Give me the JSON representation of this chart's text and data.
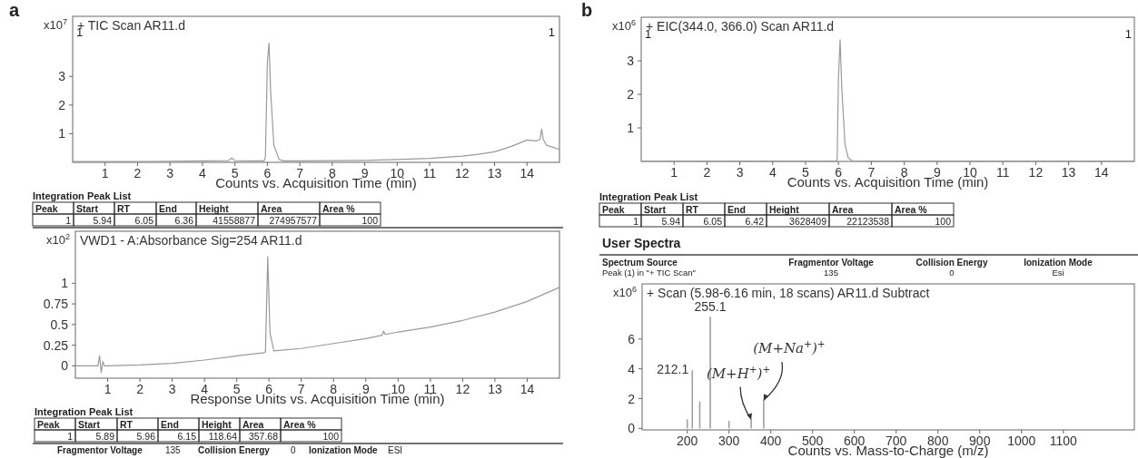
{
  "chart_data": [
    {
      "type": "line",
      "title": "+ TIC Scan AR11.d",
      "xlabel": "Counts vs. Acquisition Time (min)",
      "ylabel": "x10$^{7}$",
      "annotations": [
        "a",
        "1",
        "1"
      ],
      "xlim": [
        0,
        15
      ],
      "ylim": [
        0,
        5.1
      ],
      "xticks": [
        1,
        2,
        3,
        4,
        5,
        6,
        7,
        8,
        9,
        10,
        11,
        12,
        13,
        14
      ],
      "yticks": [
        1,
        2,
        3
      ],
      "series": [
        {
          "color": "#9a9a9a",
          "x": [
            0,
            1,
            2,
            3,
            4,
            4.8,
            4.9,
            5.0,
            5.5,
            5.9,
            5.94,
            6.0,
            6.05,
            6.1,
            6.2,
            6.36,
            6.5,
            7,
            8,
            9,
            10,
            11,
            12,
            12.5,
            13,
            13.5,
            14,
            14.3,
            14.4,
            14.45,
            14.5,
            14.6,
            15
          ],
          "values": [
            0.03,
            0.03,
            0.03,
            0.04,
            0.05,
            0.06,
            0.15,
            0.06,
            0.05,
            0.05,
            0.2,
            3.5,
            4.16,
            2.5,
            0.6,
            0.1,
            0.05,
            0.05,
            0.06,
            0.07,
            0.1,
            0.14,
            0.22,
            0.28,
            0.37,
            0.55,
            0.78,
            0.75,
            0.8,
            1.16,
            0.8,
            0.6,
            0.45
          ]
        }
      ]
    },
    {
      "type": "other",
      "title": "Integration Peak List",
      "categories": [
        "Peak",
        "Start",
        "RT",
        "End",
        "Height",
        "Area",
        "Area %"
      ],
      "annotations": [
        "1",
        "5.94",
        "6.05",
        "6.36",
        "41558877",
        "274957577",
        "100"
      ]
    },
    {
      "type": "line",
      "title": "VWD1 - A:Absorbance Sig=254 AR11.d",
      "xlabel": "Response Units vs. Acquisition Time (min)",
      "ylabel": "x10$^{2}$",
      "xlim": [
        0,
        15
      ],
      "ylim": [
        -0.15,
        1.63
      ],
      "xticks": [
        1,
        2,
        3,
        4,
        5,
        6,
        7,
        8,
        9,
        10,
        11,
        12,
        13,
        14
      ],
      "yticks": [
        0,
        0.25,
        0.5,
        0.75,
        1
      ],
      "series": [
        {
          "color": "#9a9a9a",
          "x": [
            0,
            0.5,
            0.7,
            0.75,
            0.8,
            0.85,
            0.9,
            1,
            2,
            3,
            4,
            5,
            5.85,
            5.89,
            5.96,
            6.03,
            6.15,
            7,
            8,
            9,
            9.5,
            9.55,
            9.6,
            10,
            11,
            12,
            13,
            14,
            15
          ],
          "values": [
            0,
            0,
            0,
            0.12,
            -0.08,
            0.05,
            0,
            0,
            0.01,
            0.03,
            0.07,
            0.12,
            0.16,
            0.17,
            1.32,
            0.4,
            0.18,
            0.21,
            0.27,
            0.33,
            0.37,
            0.42,
            0.38,
            0.41,
            0.47,
            0.55,
            0.65,
            0.78,
            0.95
          ]
        }
      ]
    },
    {
      "type": "other",
      "title": "Integration Peak List",
      "categories": [
        "Peak",
        "Start",
        "RT",
        "End",
        "Height",
        "Area",
        "Area %"
      ],
      "annotations": [
        "1",
        "5.89",
        "5.96",
        "6.15",
        "118.64",
        "357.68",
        "100"
      ]
    },
    {
      "type": "other",
      "categories": [
        "Fragmentor Voltage",
        "Collision Energy",
        "Ionization Mode"
      ],
      "annotations": [
        "135",
        "0",
        "ESI"
      ]
    },
    {
      "type": "line",
      "title": "+ EIC(344.0, 366.0) Scan AR11.d",
      "xlabel": "Counts vs. Acquisition Time (min)",
      "ylabel": "x10$^{6}$",
      "annotations": [
        "b",
        "1",
        "1"
      ],
      "xlim": [
        0,
        15
      ],
      "ylim": [
        0,
        4.3
      ],
      "xticks": [
        1,
        2,
        3,
        4,
        5,
        6,
        7,
        8,
        9,
        10,
        11,
        12,
        13,
        14
      ],
      "yticks": [
        1,
        2,
        3
      ],
      "series": [
        {
          "color": "#9a9a9a",
          "x": [
            0,
            5.9,
            5.96,
            6.0,
            6.05,
            6.1,
            6.2,
            6.3,
            6.42,
            7,
            15
          ],
          "values": [
            0.01,
            0.01,
            0.05,
            2.5,
            3.63,
            2.2,
            0.5,
            0.1,
            0.02,
            0.01,
            0.01
          ]
        }
      ]
    },
    {
      "type": "other",
      "title": "Integration Peak List",
      "categories": [
        "Peak",
        "Start",
        "RT",
        "End",
        "Height",
        "Area",
        "Area %"
      ],
      "annotations": [
        "1",
        "5.94",
        "6.05",
        "6.42",
        "3628409",
        "22123538",
        "100"
      ]
    },
    {
      "type": "other",
      "title": "User Spectra",
      "categories": [
        "Spectrum Source",
        "Fragmentor Voltage",
        "Collision Energy",
        "Ionization Mode"
      ],
      "annotations": [
        "Peak (1) in \"+ TIC Scan\"",
        "135",
        "0",
        "Esi"
      ]
    },
    {
      "type": "bar",
      "title": "+ Scan (5.98-6.16 min, 18 scans) AR11.d  Subtract",
      "xlabel": "Counts vs. Mass-to-Charge (m/z)",
      "ylabel": "x10$^{6}$",
      "xlim": [
        92,
        1270
      ],
      "ylim": [
        -0.1,
        9.7
      ],
      "xticks": [
        200,
        300,
        400,
        500,
        600,
        700,
        800,
        900,
        1000,
        1100
      ],
      "yticks": [
        0,
        2,
        4,
        6
      ],
      "color": "#a0a0a0",
      "x": [
        200,
        212.1,
        230,
        255.1,
        300,
        353,
        383
      ],
      "values": [
        0.6,
        3.9,
        1.8,
        7.5,
        0.5,
        0.6,
        1.9
      ],
      "annotations": [
        {
          "text": "255.1",
          "x": 255.1,
          "y": 7.5
        },
        {
          "text": "212.1",
          "x": 212.1,
          "y": 3.9
        },
        {
          "text": "(M+H$^{+}$)$^{+}$",
          "x": 353,
          "y": 0.6
        },
        {
          "text": "(M+Na$^{+}$)$^{+}$",
          "x": 383,
          "y": 1.9
        }
      ]
    }
  ]
}
